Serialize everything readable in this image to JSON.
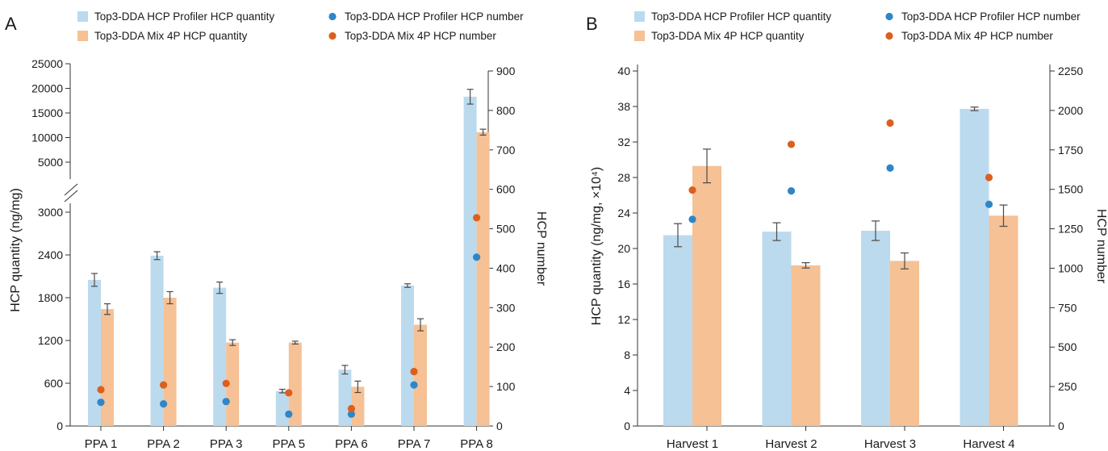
{
  "colors": {
    "profiler_bar": "#bcdaee",
    "mix_bar": "#f5c195",
    "profiler_dot": "#2e86c8",
    "mix_dot": "#dd5f1d"
  },
  "chart_data": [
    {
      "type": "bar",
      "panel_label": "A",
      "categories": [
        "PPA 1",
        "PPA 2",
        "PPA 3",
        "PPA 5",
        "PPA 6",
        "PPA 7",
        "PPA 8"
      ],
      "legend": [
        {
          "label": "Top3-DDA HCP Profiler HCP quantity",
          "marker": "bar",
          "color": "#bcdaee"
        },
        {
          "label": "Top3-DDA HCP Profiler HCP number",
          "marker": "dot",
          "color": "#2e86c8"
        },
        {
          "label": "Top3-DDA Mix 4P HCP quantity",
          "marker": "bar",
          "color": "#f5c195"
        },
        {
          "label": "Top3-DDA Mix 4P HCP number",
          "marker": "dot",
          "color": "#dd5f1d"
        }
      ],
      "ylabel": "HCP quantity (ng/mg)",
      "y2label": "HCP number",
      "y_axis": "broken: 0-3000 linear lower segment, 5000-25000 upper segment",
      "y_ticks_lower": [
        0,
        600,
        1200,
        1800,
        2400,
        3000
      ],
      "y_ticks_upper": [
        5000,
        10000,
        15000,
        20000,
        25000
      ],
      "y2_ticks": [
        0,
        100,
        200,
        300,
        400,
        500,
        600,
        700,
        800,
        900
      ],
      "y2lim": [
        0,
        900
      ],
      "series": [
        {
          "name": "Top3-DDA HCP Profiler HCP quantity",
          "kind": "bar",
          "axis": "left",
          "values": [
            2050,
            2390,
            1940,
            490,
            790,
            1970,
            18300
          ],
          "errors": [
            90,
            55,
            80,
            25,
            60,
            25,
            1500
          ]
        },
        {
          "name": "Top3-DDA Mix 4P HCP quantity",
          "kind": "bar",
          "axis": "left",
          "values": [
            1640,
            1800,
            1170,
            1170,
            550,
            1420,
            11100
          ],
          "errors": [
            75,
            85,
            40,
            20,
            80,
            85,
            600
          ]
        },
        {
          "name": "Top3-DDA HCP Profiler HCP number",
          "kind": "dot",
          "axis": "right",
          "values": [
            60,
            56,
            62,
            30,
            30,
            104,
            428
          ]
        },
        {
          "name": "Top3-DDA Mix 4P HCP number",
          "kind": "dot",
          "axis": "right",
          "values": [
            92,
            104,
            108,
            84,
            44,
            138,
            528
          ]
        }
      ]
    },
    {
      "type": "bar",
      "panel_label": "B",
      "categories": [
        "Harvest 1",
        "Harvest 2",
        "Harvest 3",
        "Harvest 4"
      ],
      "legend": [
        {
          "label": "Top3-DDA HCP Profiler HCP quantity",
          "marker": "bar",
          "color": "#bcdaee"
        },
        {
          "label": "Top3-DDA HCP Profiler HCP number",
          "marker": "dot",
          "color": "#2e86c8"
        },
        {
          "label": "Top3-DDA Mix 4P HCP quantity",
          "marker": "bar",
          "color": "#f5c195"
        },
        {
          "label": "Top3-DDA Mix 4P HCP number",
          "marker": "dot",
          "color": "#dd5f1d"
        }
      ],
      "ylabel": "HCP quantity (ng/mg, ×10⁴)",
      "y2label": "HCP number",
      "y_ticks": [
        0,
        4,
        8,
        12,
        16,
        20,
        24,
        28,
        32,
        38,
        40
      ],
      "y2_ticks": [
        0,
        250,
        500,
        750,
        1000,
        1250,
        1500,
        1750,
        2000,
        2250
      ],
      "y2lim": [
        0,
        2250
      ],
      "series": [
        {
          "name": "Top3-DDA HCP Profiler HCP quantity",
          "kind": "bar",
          "axis": "left",
          "values": [
            21.5,
            21.9,
            22.0,
            37.6
          ],
          "errors": [
            1.3,
            1.0,
            1.1,
            0.3
          ]
        },
        {
          "name": "Top3-DDA Mix 4P HCP quantity",
          "kind": "bar",
          "axis": "left",
          "values": [
            29.3,
            18.1,
            18.6,
            23.7
          ],
          "errors": [
            1.9,
            0.3,
            0.9,
            1.2
          ]
        },
        {
          "name": "Top3-DDA HCP Profiler HCP number",
          "kind": "dot",
          "axis": "right",
          "values": [
            1310,
            1490,
            1635,
            1405
          ]
        },
        {
          "name": "Top3-DDA Mix 4P HCP number",
          "kind": "dot",
          "axis": "right",
          "values": [
            1495,
            1785,
            1920,
            1575
          ]
        }
      ]
    }
  ]
}
